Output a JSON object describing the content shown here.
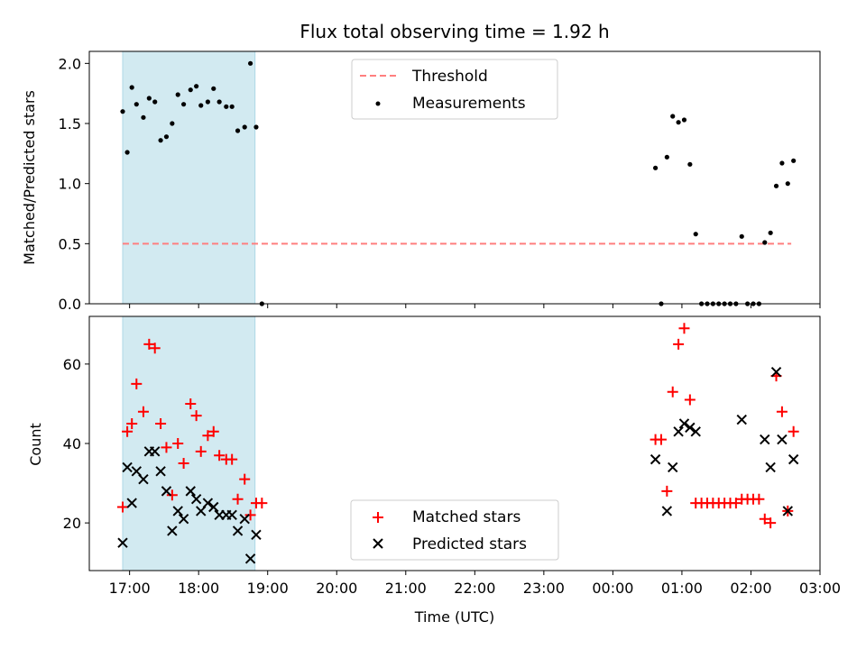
{
  "chart_data": [
    {
      "type": "scatter",
      "title": "Flux total observing time = 1.92 h",
      "xlabel": "",
      "ylabel": "Matched/Predicted stars",
      "xlim": [
        "16:25",
        "03:00"
      ],
      "ylim": [
        0,
        2.1
      ],
      "yticks": [
        "0.0",
        "0.5",
        "1.0",
        "1.5",
        "2.0"
      ],
      "shaded_span": [
        "16:54",
        "18:49"
      ],
      "shade_color": "#add8e6",
      "threshold": {
        "name": "Threshold",
        "y": 0.5,
        "x": [
          "16:54",
          "02:35"
        ],
        "color": "#ff7f7f"
      },
      "series": [
        {
          "name": "Measurements",
          "color": "#000000",
          "marker": "dot",
          "points": [
            [
              "16:54",
              1.6
            ],
            [
              "16:58",
              1.26
            ],
            [
              "17:02",
              1.8
            ],
            [
              "17:06",
              1.66
            ],
            [
              "17:12",
              1.55
            ],
            [
              "17:17",
              1.71
            ],
            [
              "17:22",
              1.68
            ],
            [
              "17:27",
              1.36
            ],
            [
              "17:32",
              1.39
            ],
            [
              "17:37",
              1.5
            ],
            [
              "17:42",
              1.74
            ],
            [
              "17:47",
              1.66
            ],
            [
              "17:53",
              1.78
            ],
            [
              "17:58",
              1.81
            ],
            [
              "18:02",
              1.65
            ],
            [
              "18:08",
              1.68
            ],
            [
              "18:13",
              1.79
            ],
            [
              "18:18",
              1.68
            ],
            [
              "18:24",
              1.64
            ],
            [
              "18:29",
              1.64
            ],
            [
              "18:34",
              1.44
            ],
            [
              "18:40",
              1.47
            ],
            [
              "18:45",
              2.0
            ],
            [
              "18:50",
              1.47
            ],
            [
              "18:55",
              0.0
            ],
            [
              "00:37",
              1.13
            ],
            [
              "00:42",
              0.0
            ],
            [
              "00:47",
              1.22
            ],
            [
              "00:52",
              1.56
            ],
            [
              "00:57",
              1.51
            ],
            [
              "01:02",
              1.53
            ],
            [
              "01:07",
              1.16
            ],
            [
              "01:12",
              0.58
            ],
            [
              "01:17",
              0.0
            ],
            [
              "01:22",
              0.0
            ],
            [
              "01:27",
              0.0
            ],
            [
              "01:32",
              0.0
            ],
            [
              "01:37",
              0.0
            ],
            [
              "01:42",
              0.0
            ],
            [
              "01:47",
              0.0
            ],
            [
              "01:52",
              0.56
            ],
            [
              "01:57",
              0.0
            ],
            [
              "02:02",
              0.0
            ],
            [
              "02:07",
              0.0
            ],
            [
              "02:12",
              0.51
            ],
            [
              "02:17",
              0.59
            ],
            [
              "02:22",
              0.98
            ],
            [
              "02:27",
              1.17
            ],
            [
              "02:32",
              1.0
            ],
            [
              "02:37",
              1.19
            ]
          ]
        }
      ],
      "legend": {
        "position": "top-center",
        "entries": [
          "Threshold",
          "Measurements"
        ]
      }
    },
    {
      "type": "scatter",
      "title": "",
      "xlabel": "Time (UTC)",
      "ylabel": "Count",
      "xlim": [
        "16:25",
        "03:00"
      ],
      "ylim": [
        8,
        72
      ],
      "yticks": [
        "20",
        "40",
        "60"
      ],
      "xticks": [
        "17:00",
        "18:00",
        "19:00",
        "20:00",
        "21:00",
        "22:00",
        "23:00",
        "00:00",
        "01:00",
        "02:00",
        "03:00"
      ],
      "shaded_span": [
        "16:54",
        "18:49"
      ],
      "shade_color": "#add8e6",
      "series": [
        {
          "name": "Matched stars",
          "color": "#ff0000",
          "marker": "plus",
          "points": [
            [
              "16:54",
              24
            ],
            [
              "16:58",
              43
            ],
            [
              "17:02",
              45
            ],
            [
              "17:06",
              55
            ],
            [
              "17:12",
              48
            ],
            [
              "17:17",
              65
            ],
            [
              "17:22",
              64
            ],
            [
              "17:27",
              45
            ],
            [
              "17:32",
              39
            ],
            [
              "17:37",
              27
            ],
            [
              "17:42",
              40
            ],
            [
              "17:47",
              35
            ],
            [
              "17:53",
              50
            ],
            [
              "17:58",
              47
            ],
            [
              "18:02",
              38
            ],
            [
              "18:08",
              42
            ],
            [
              "18:13",
              43
            ],
            [
              "18:18",
              37
            ],
            [
              "18:24",
              36
            ],
            [
              "18:29",
              36
            ],
            [
              "18:34",
              26
            ],
            [
              "18:40",
              31
            ],
            [
              "18:45",
              22
            ],
            [
              "18:50",
              25
            ],
            [
              "18:55",
              25
            ],
            [
              "00:37",
              41
            ],
            [
              "00:42",
              41
            ],
            [
              "00:47",
              28
            ],
            [
              "00:52",
              53
            ],
            [
              "00:57",
              65
            ],
            [
              "01:02",
              69
            ],
            [
              "01:07",
              51
            ],
            [
              "01:12",
              25
            ],
            [
              "01:17",
              25
            ],
            [
              "01:22",
              25
            ],
            [
              "01:27",
              25
            ],
            [
              "01:32",
              25
            ],
            [
              "01:37",
              25
            ],
            [
              "01:42",
              25
            ],
            [
              "01:47",
              25
            ],
            [
              "01:52",
              26
            ],
            [
              "01:57",
              26
            ],
            [
              "02:02",
              26
            ],
            [
              "02:07",
              26
            ],
            [
              "02:12",
              21
            ],
            [
              "02:17",
              20
            ],
            [
              "02:22",
              57
            ],
            [
              "02:27",
              48
            ],
            [
              "02:32",
              23
            ],
            [
              "02:37",
              43
            ]
          ]
        },
        {
          "name": "Predicted stars",
          "color": "#000000",
          "marker": "x",
          "points": [
            [
              "16:54",
              15
            ],
            [
              "16:58",
              34
            ],
            [
              "17:02",
              25
            ],
            [
              "17:06",
              33
            ],
            [
              "17:12",
              31
            ],
            [
              "17:17",
              38
            ],
            [
              "17:22",
              38
            ],
            [
              "17:27",
              33
            ],
            [
              "17:32",
              28
            ],
            [
              "17:37",
              18
            ],
            [
              "17:42",
              23
            ],
            [
              "17:47",
              21
            ],
            [
              "17:53",
              28
            ],
            [
              "17:58",
              26
            ],
            [
              "18:02",
              23
            ],
            [
              "18:08",
              25
            ],
            [
              "18:13",
              24
            ],
            [
              "18:18",
              22
            ],
            [
              "18:24",
              22
            ],
            [
              "18:29",
              22
            ],
            [
              "18:34",
              18
            ],
            [
              "18:40",
              21
            ],
            [
              "18:45",
              11
            ],
            [
              "18:50",
              17
            ],
            [
              "00:37",
              36
            ],
            [
              "00:47",
              23
            ],
            [
              "00:52",
              34
            ],
            [
              "00:57",
              43
            ],
            [
              "01:02",
              45
            ],
            [
              "01:07",
              44
            ],
            [
              "01:12",
              43
            ],
            [
              "01:52",
              46
            ],
            [
              "02:12",
              41
            ],
            [
              "02:17",
              34
            ],
            [
              "02:22",
              58
            ],
            [
              "02:27",
              41
            ],
            [
              "02:32",
              23
            ],
            [
              "02:37",
              36
            ]
          ]
        }
      ],
      "legend": {
        "position": "bottom-center",
        "entries": [
          "Matched stars",
          "Predicted stars"
        ]
      }
    }
  ]
}
